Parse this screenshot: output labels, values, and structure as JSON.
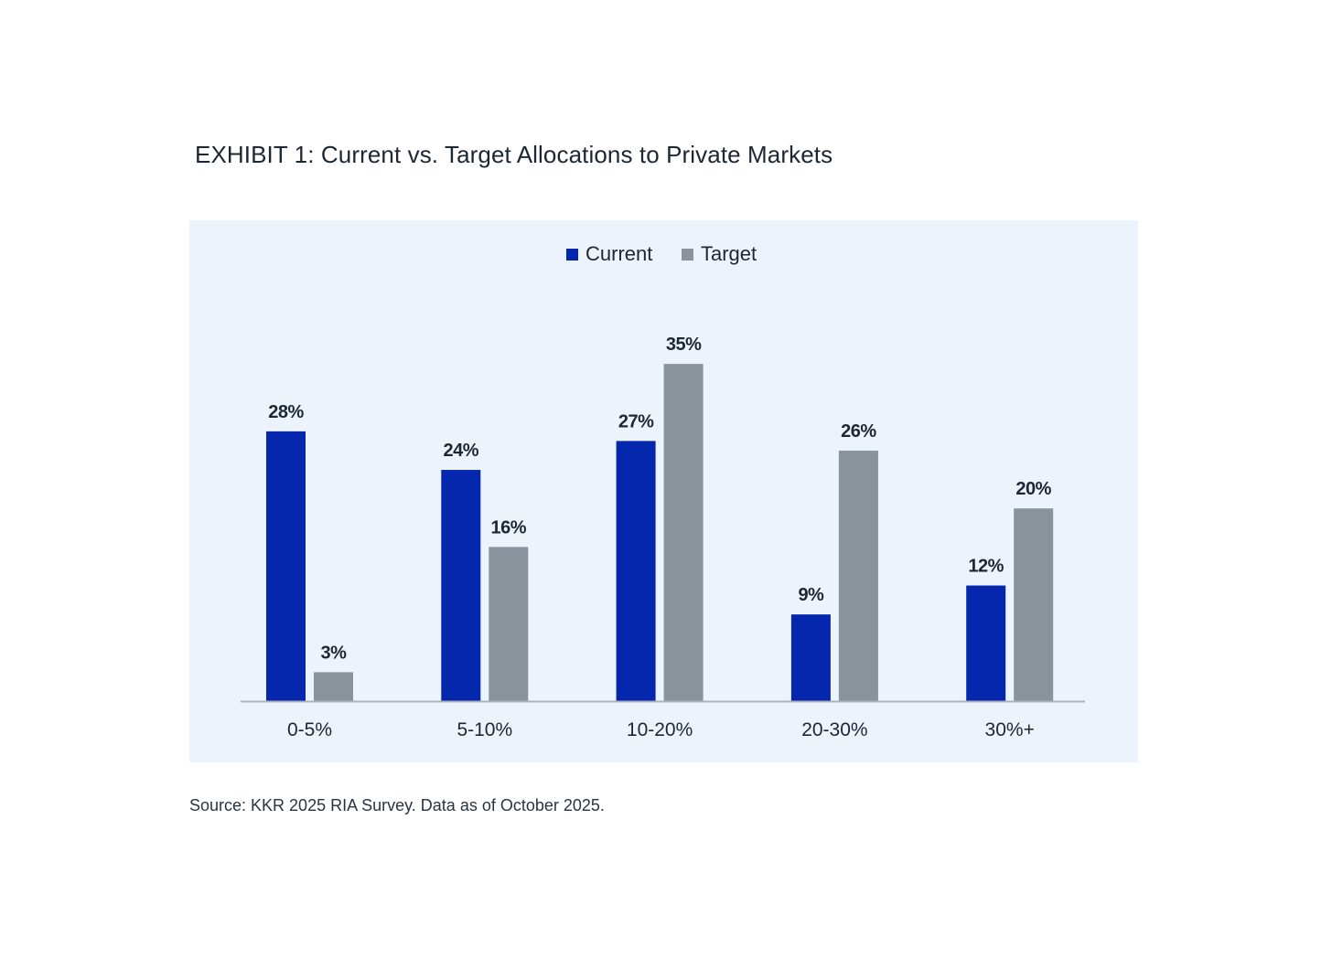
{
  "title": "EXHIBIT 1: Current vs. Target Allocations to Private Markets",
  "source": "Source: KKR 2025 RIA Survey. Data as of October 2025.",
  "colors": {
    "current": "#0527ad",
    "target": "#89939b",
    "panel": "#edf3fb",
    "axis": "#aab3bd"
  },
  "chart_data": {
    "type": "bar",
    "categories": [
      "0-5%",
      "5-10%",
      "10-20%",
      "20-30%",
      "30%+"
    ],
    "series": [
      {
        "name": "Current",
        "values": [
          28,
          24,
          27,
          9,
          12
        ],
        "labels": [
          "28%",
          "24%",
          "27%",
          "9%",
          "12%"
        ]
      },
      {
        "name": "Target",
        "values": [
          3,
          16,
          35,
          26,
          20
        ],
        "labels": [
          "3%",
          "16%",
          "35%",
          "26%",
          "20%"
        ]
      }
    ],
    "title": "EXHIBIT 1: Current vs. Target Allocations to Private Markets",
    "xlabel": "",
    "ylabel": "",
    "ylim": [
      0,
      35
    ],
    "grid": false,
    "legend": "top-center"
  }
}
